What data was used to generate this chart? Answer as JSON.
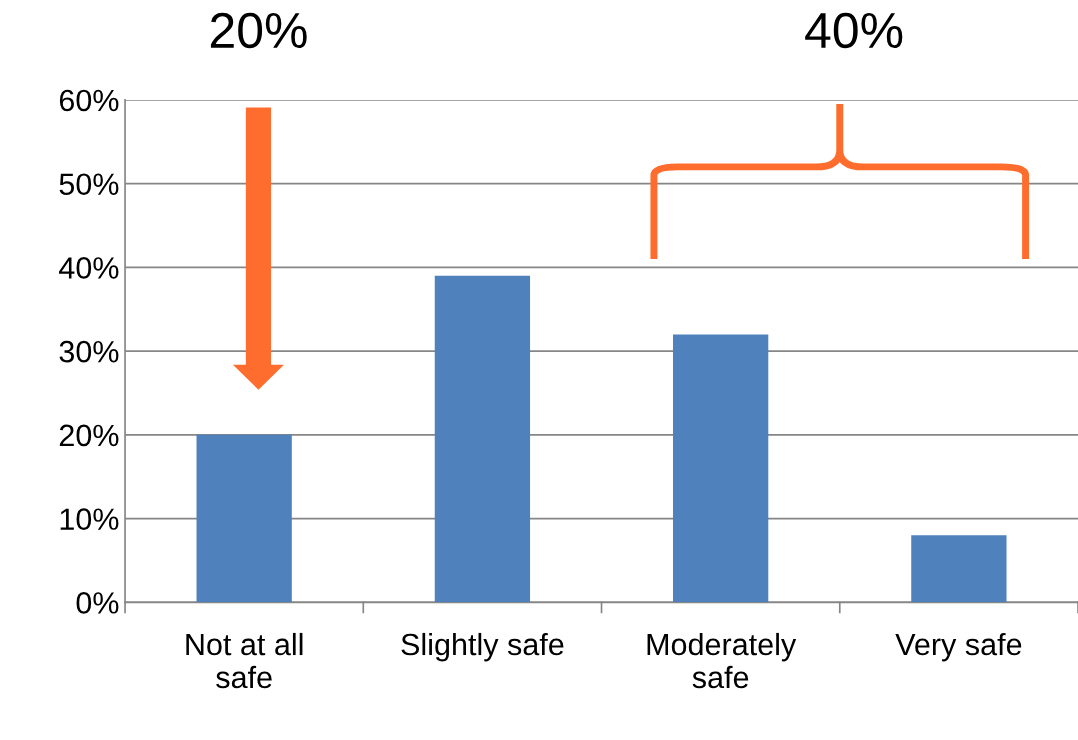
{
  "chart_data": {
    "type": "bar",
    "categories": [
      "Not at all\nsafe",
      "Slightly safe",
      "Moderately\nsafe",
      "Very safe"
    ],
    "values": [
      20,
      39,
      32,
      8
    ],
    "color": "#4f81bd",
    "ylim": [
      0,
      60
    ],
    "yticks": [
      {
        "value": 0,
        "label": "0%"
      },
      {
        "value": 10,
        "label": "10%"
      },
      {
        "value": 20,
        "label": "20%"
      },
      {
        "value": 30,
        "label": "30%"
      },
      {
        "value": 40,
        "label": "40%"
      },
      {
        "value": 50,
        "label": "50%"
      },
      {
        "value": 60,
        "label": "60%"
      }
    ],
    "grid": "y",
    "annotations": [
      "20%",
      "40%"
    ]
  }
}
